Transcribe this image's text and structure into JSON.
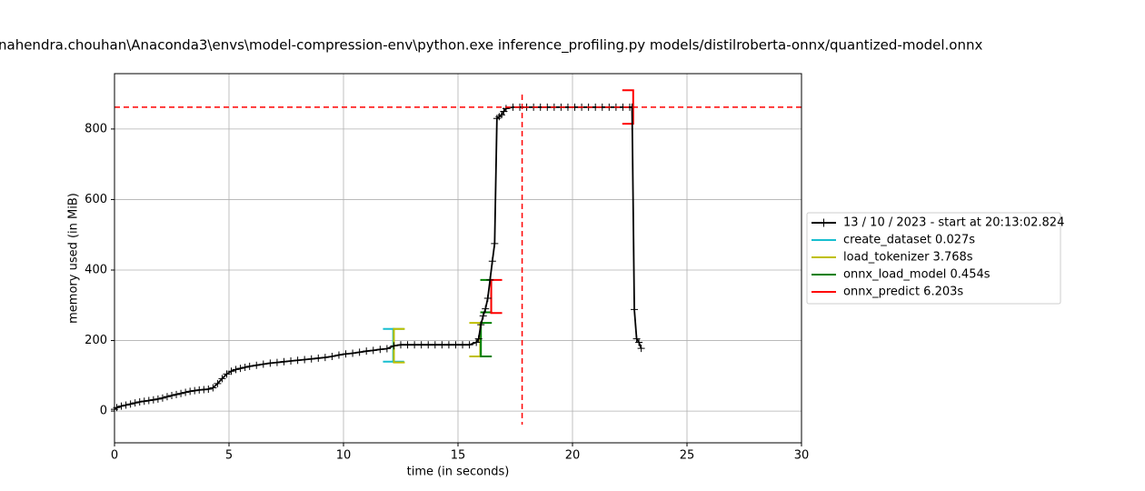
{
  "chart_data": {
    "type": "line",
    "title": "nahendra.chouhan\\Anaconda3\\envs\\model-compression-env\\python.exe inference_profiling.py models/distilroberta-onnx/quantized-model.onnx",
    "xlabel": "time (in seconds)",
    "ylabel": "memory used (in MiB)",
    "xlim": [
      0,
      30
    ],
    "ylim": [
      -90,
      957
    ],
    "xticks": [
      0,
      5,
      10,
      15,
      20,
      25,
      30
    ],
    "yticks": [
      0,
      200,
      400,
      600,
      800
    ],
    "grid": true,
    "legend": "right",
    "max_memory": 862,
    "max_memory_time": 17.8,
    "max_color": "#ff0000",
    "series": [
      {
        "name": "13 / 10 / 2023 - start at 20:13:02.824",
        "color": "#000000",
        "marker": "+",
        "x": [
          0,
          0.1,
          0.3,
          0.5,
          0.7,
          0.9,
          1.1,
          1.3,
          1.5,
          1.7,
          1.9,
          2.1,
          2.3,
          2.5,
          2.7,
          2.9,
          3.1,
          3.3,
          3.5,
          3.7,
          3.9,
          4.1,
          4.3,
          4.5,
          4.7,
          4.9,
          5.1,
          5.3,
          5.5,
          5.7,
          5.9,
          6.2,
          6.5,
          6.8,
          7.1,
          7.4,
          7.7,
          8.0,
          8.3,
          8.6,
          8.9,
          9.2,
          9.5,
          9.8,
          10.1,
          10.4,
          10.7,
          11.0,
          11.3,
          11.6,
          11.9,
          12.2,
          12.5,
          12.8,
          13.1,
          13.4,
          13.7,
          14.0,
          14.3,
          14.6,
          14.9,
          15.2,
          15.5,
          15.8,
          15.9,
          16.0,
          16.1,
          16.2,
          16.3,
          16.4,
          16.5,
          16.6,
          16.7,
          16.8,
          16.9,
          17.0,
          17.1,
          17.4,
          17.7,
          18.0,
          18.3,
          18.6,
          18.9,
          19.2,
          19.5,
          19.8,
          20.1,
          20.4,
          20.7,
          21.0,
          21.3,
          21.6,
          21.9,
          22.2,
          22.5,
          22.6,
          22.7,
          22.8,
          22.9,
          23.0
        ],
        "values": [
          5,
          10,
          14,
          17,
          20,
          23,
          26,
          28,
          30,
          32,
          34,
          37,
          41,
          44,
          47,
          50,
          53,
          56,
          58,
          60,
          61,
          62,
          66,
          78,
          92,
          105,
          113,
          118,
          121,
          124,
          127,
          130,
          133,
          136,
          138,
          140,
          142,
          144,
          146,
          148,
          150,
          152,
          155,
          159,
          162,
          164,
          167,
          170,
          172,
          175,
          177,
          185,
          188,
          188,
          188,
          188,
          188,
          188,
          188,
          188,
          188,
          188,
          188,
          195,
          205,
          245,
          270,
          290,
          320,
          372,
          425,
          475,
          830,
          835,
          840,
          850,
          858,
          862,
          862,
          862,
          862,
          862,
          862,
          862,
          862,
          862,
          862,
          862,
          862,
          862,
          862,
          862,
          862,
          862,
          862,
          862,
          288,
          205,
          195,
          178
        ]
      }
    ],
    "functions": [
      {
        "name": "create_dataset 0.027s",
        "color": "#17becf",
        "x": [
          12.17,
          12.2
        ],
        "low": [
          140,
          140
        ],
        "high": [
          233,
          233
        ]
      },
      {
        "name": "load_tokenizer 3.768s",
        "color": "#bfbf00",
        "x": [
          12.2,
          15.97
        ],
        "low": [
          138,
          155
        ],
        "high": [
          233,
          250
        ]
      },
      {
        "name": "onnx_load_model 0.454s",
        "color": "#008000",
        "x": [
          16.0,
          16.45
        ],
        "low": [
          155,
          280
        ],
        "high": [
          250,
          372
        ]
      },
      {
        "name": "onnx_predict 6.203s",
        "color": "#ff0000",
        "x": [
          16.45,
          22.65
        ],
        "low": [
          278,
          815
        ],
        "high": [
          372,
          910
        ]
      }
    ]
  }
}
